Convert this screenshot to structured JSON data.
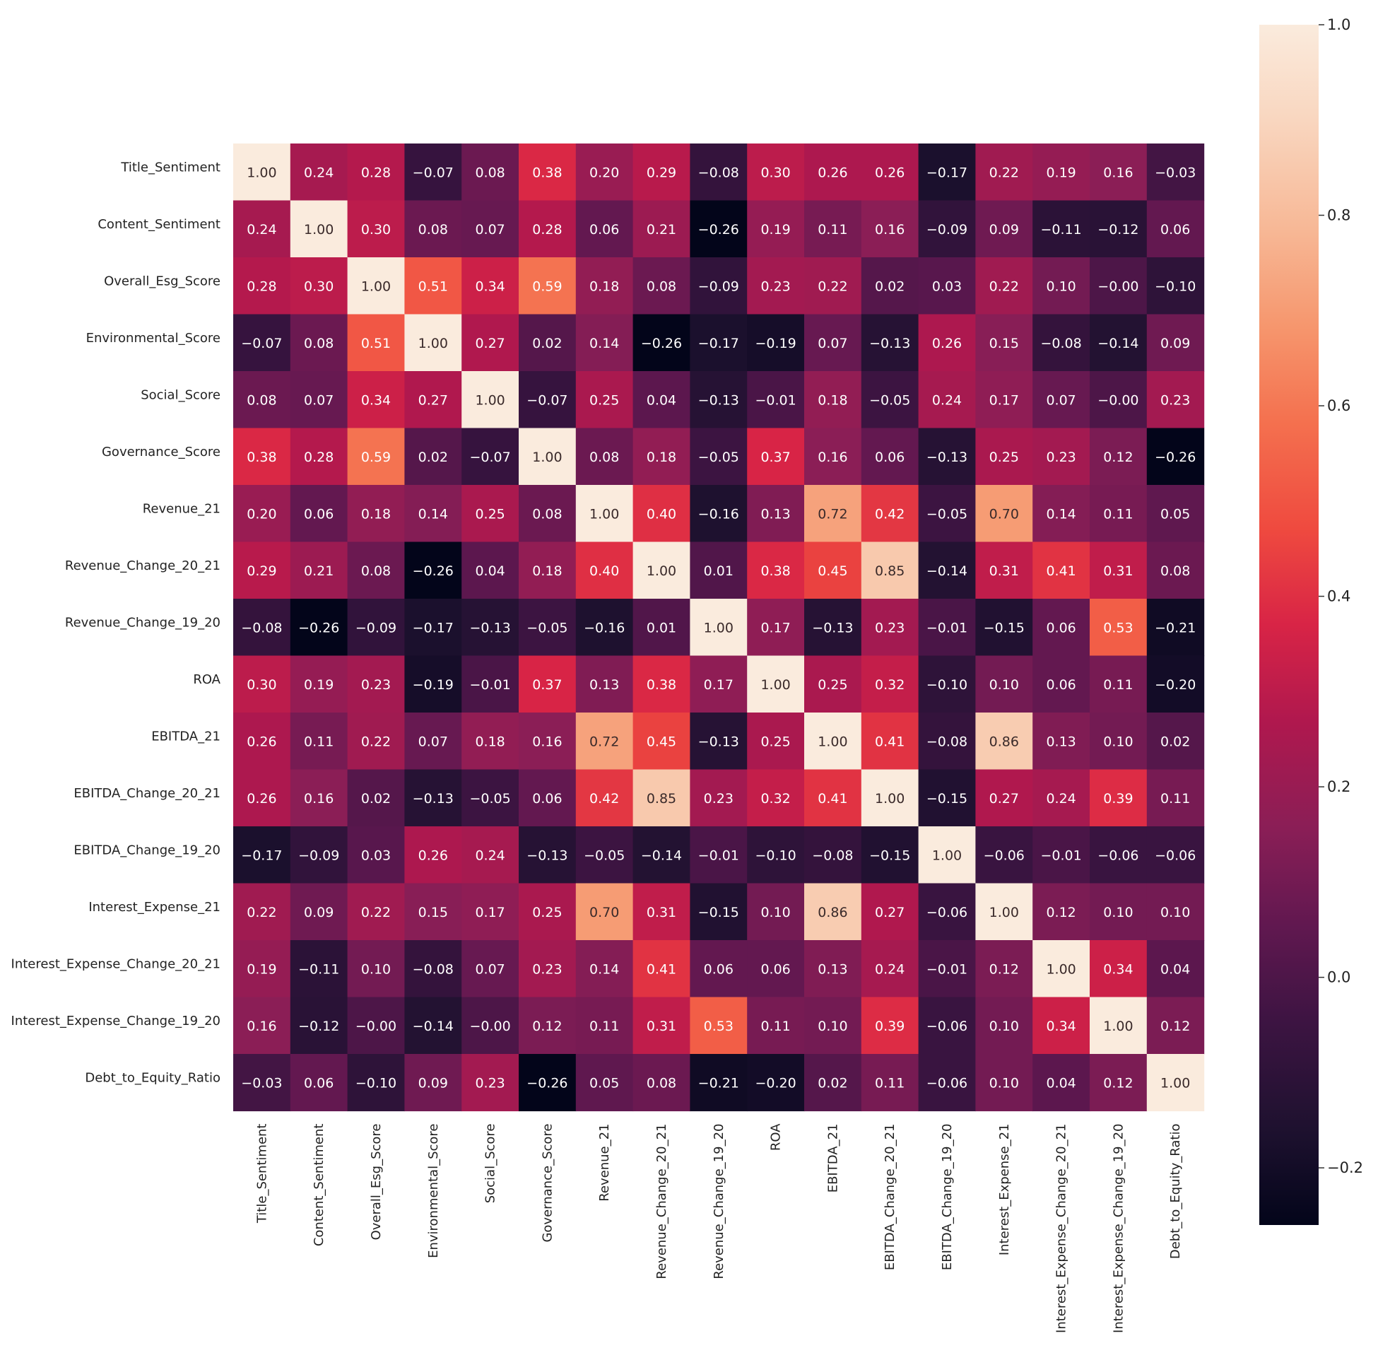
{
  "chart_data": {
    "type": "heatmap",
    "title": "",
    "xlabel": "",
    "ylabel": "",
    "labels": [
      "Title_Sentiment",
      "Content_Sentiment",
      "Overall_Esg_Score",
      "Environmental_Score",
      "Social_Score",
      "Governance_Score",
      "Revenue_21",
      "Revenue_Change_20_21",
      "Revenue_Change_19_20",
      "ROA",
      "EBITDA_21",
      "EBITDA_Change_20_21",
      "EBITDA_Change_19_20",
      "Interest_Expense_21",
      "Interest_Expense_Change_20_21",
      "Interest_Expense_Change_19_20",
      "Debt_to_Equity_Ratio"
    ],
    "values": [
      [
        1.0,
        0.24,
        0.28,
        -0.07,
        0.08,
        0.38,
        0.2,
        0.29,
        -0.08,
        0.3,
        0.26,
        0.26,
        -0.17,
        0.22,
        0.19,
        0.16,
        -0.03
      ],
      [
        0.24,
        1.0,
        0.3,
        0.08,
        0.07,
        0.28,
        0.06,
        0.21,
        -0.26,
        0.19,
        0.11,
        0.16,
        -0.09,
        0.09,
        -0.11,
        -0.12,
        0.06
      ],
      [
        0.28,
        0.3,
        1.0,
        0.51,
        0.34,
        0.59,
        0.18,
        0.08,
        -0.09,
        0.23,
        0.22,
        0.02,
        0.03,
        0.22,
        0.1,
        -0.0,
        -0.1
      ],
      [
        -0.07,
        0.08,
        0.51,
        1.0,
        0.27,
        0.02,
        0.14,
        -0.26,
        -0.17,
        -0.19,
        0.07,
        -0.13,
        0.26,
        0.15,
        -0.08,
        -0.14,
        0.09
      ],
      [
        0.08,
        0.07,
        0.34,
        0.27,
        1.0,
        -0.07,
        0.25,
        0.04,
        -0.13,
        -0.01,
        0.18,
        -0.05,
        0.24,
        0.17,
        0.07,
        -0.0,
        0.23
      ],
      [
        0.38,
        0.28,
        0.59,
        0.02,
        -0.07,
        1.0,
        0.08,
        0.18,
        -0.05,
        0.37,
        0.16,
        0.06,
        -0.13,
        0.25,
        0.23,
        0.12,
        -0.26
      ],
      [
        0.2,
        0.06,
        0.18,
        0.14,
        0.25,
        0.08,
        1.0,
        0.4,
        -0.16,
        0.13,
        0.72,
        0.42,
        -0.05,
        0.7,
        0.14,
        0.11,
        0.05
      ],
      [
        0.29,
        0.21,
        0.08,
        -0.26,
        0.04,
        0.18,
        0.4,
        1.0,
        0.01,
        0.38,
        0.45,
        0.85,
        -0.14,
        0.31,
        0.41,
        0.31,
        0.08
      ],
      [
        -0.08,
        -0.26,
        -0.09,
        -0.17,
        -0.13,
        -0.05,
        -0.16,
        0.01,
        1.0,
        0.17,
        -0.13,
        0.23,
        -0.01,
        -0.15,
        0.06,
        0.53,
        -0.21
      ],
      [
        0.3,
        0.19,
        0.23,
        -0.19,
        -0.01,
        0.37,
        0.13,
        0.38,
        0.17,
        1.0,
        0.25,
        0.32,
        -0.1,
        0.1,
        0.06,
        0.11,
        -0.2
      ],
      [
        0.26,
        0.11,
        0.22,
        0.07,
        0.18,
        0.16,
        0.72,
        0.45,
        -0.13,
        0.25,
        1.0,
        0.41,
        -0.08,
        0.86,
        0.13,
        0.1,
        0.02
      ],
      [
        0.26,
        0.16,
        0.02,
        -0.13,
        -0.05,
        0.06,
        0.42,
        0.85,
        0.23,
        0.32,
        0.41,
        1.0,
        -0.15,
        0.27,
        0.24,
        0.39,
        0.11
      ],
      [
        -0.17,
        -0.09,
        0.03,
        0.26,
        0.24,
        -0.13,
        -0.05,
        -0.14,
        -0.01,
        -0.1,
        -0.08,
        -0.15,
        1.0,
        -0.06,
        -0.01,
        -0.06,
        -0.06
      ],
      [
        0.22,
        0.09,
        0.22,
        0.15,
        0.17,
        0.25,
        0.7,
        0.31,
        -0.15,
        0.1,
        0.86,
        0.27,
        -0.06,
        1.0,
        0.12,
        0.1,
        0.1
      ],
      [
        0.19,
        -0.11,
        0.1,
        -0.08,
        0.07,
        0.23,
        0.14,
        0.41,
        0.06,
        0.06,
        0.13,
        0.24,
        -0.01,
        0.12,
        1.0,
        0.34,
        0.04
      ],
      [
        0.16,
        -0.12,
        -0.0,
        -0.14,
        -0.0,
        0.12,
        0.11,
        0.31,
        0.53,
        0.11,
        0.1,
        0.39,
        -0.06,
        0.1,
        0.34,
        1.0,
        0.12
      ],
      [
        -0.03,
        0.06,
        -0.1,
        0.09,
        0.23,
        -0.26,
        0.05,
        0.08,
        -0.21,
        -0.2,
        0.02,
        0.11,
        -0.06,
        0.1,
        0.04,
        0.12,
        1.0
      ]
    ],
    "cell_labels": [
      [
        "1.00",
        "0.24",
        "0.28",
        "−0.07",
        "0.08",
        "0.38",
        "0.20",
        "0.29",
        "−0.08",
        "0.30",
        "0.26",
        "0.26",
        "−0.17",
        "0.22",
        "0.19",
        "0.16",
        "−0.03"
      ],
      [
        "0.24",
        "1.00",
        "0.30",
        "0.08",
        "0.07",
        "0.28",
        "0.06",
        "0.21",
        "−0.26",
        "0.19",
        "0.11",
        "0.16",
        "−0.09",
        "0.09",
        "−0.11",
        "−0.12",
        "0.06"
      ],
      [
        "0.28",
        "0.30",
        "1.00",
        "0.51",
        "0.34",
        "0.59",
        "0.18",
        "0.08",
        "−0.09",
        "0.23",
        "0.22",
        "0.02",
        "0.03",
        "0.22",
        "0.10",
        "−0.00",
        "−0.10"
      ],
      [
        "−0.07",
        "0.08",
        "0.51",
        "1.00",
        "0.27",
        "0.02",
        "0.14",
        "−0.26",
        "−0.17",
        "−0.19",
        "0.07",
        "−0.13",
        "0.26",
        "0.15",
        "−0.08",
        "−0.14",
        "0.09"
      ],
      [
        "0.08",
        "0.07",
        "0.34",
        "0.27",
        "1.00",
        "−0.07",
        "0.25",
        "0.04",
        "−0.13",
        "−0.01",
        "0.18",
        "−0.05",
        "0.24",
        "0.17",
        "0.07",
        "−0.00",
        "0.23"
      ],
      [
        "0.38",
        "0.28",
        "0.59",
        "0.02",
        "−0.07",
        "1.00",
        "0.08",
        "0.18",
        "−0.05",
        "0.37",
        "0.16",
        "0.06",
        "−0.13",
        "0.25",
        "0.23",
        "0.12",
        "−0.26"
      ],
      [
        "0.20",
        "0.06",
        "0.18",
        "0.14",
        "0.25",
        "0.08",
        "1.00",
        "0.40",
        "−0.16",
        "0.13",
        "0.72",
        "0.42",
        "−0.05",
        "0.70",
        "0.14",
        "0.11",
        "0.05"
      ],
      [
        "0.29",
        "0.21",
        "0.08",
        "−0.26",
        "0.04",
        "0.18",
        "0.40",
        "1.00",
        "0.01",
        "0.38",
        "0.45",
        "0.85",
        "−0.14",
        "0.31",
        "0.41",
        "0.31",
        "0.08"
      ],
      [
        "−0.08",
        "−0.26",
        "−0.09",
        "−0.17",
        "−0.13",
        "−0.05",
        "−0.16",
        "0.01",
        "1.00",
        "0.17",
        "−0.13",
        "0.23",
        "−0.01",
        "−0.15",
        "0.06",
        "0.53",
        "−0.21"
      ],
      [
        "0.30",
        "0.19",
        "0.23",
        "−0.19",
        "−0.01",
        "0.37",
        "0.13",
        "0.38",
        "0.17",
        "1.00",
        "0.25",
        "0.32",
        "−0.10",
        "0.10",
        "0.06",
        "0.11",
        "−0.20"
      ],
      [
        "0.26",
        "0.11",
        "0.22",
        "0.07",
        "0.18",
        "0.16",
        "0.72",
        "0.45",
        "−0.13",
        "0.25",
        "1.00",
        "0.41",
        "−0.08",
        "0.86",
        "0.13",
        "0.10",
        "0.02"
      ],
      [
        "0.26",
        "0.16",
        "0.02",
        "−0.13",
        "−0.05",
        "0.06",
        "0.42",
        "0.85",
        "0.23",
        "0.32",
        "0.41",
        "1.00",
        "−0.15",
        "0.27",
        "0.24",
        "0.39",
        "0.11"
      ],
      [
        "−0.17",
        "−0.09",
        "0.03",
        "0.26",
        "0.24",
        "−0.13",
        "−0.05",
        "−0.14",
        "−0.01",
        "−0.10",
        "−0.08",
        "−0.15",
        "1.00",
        "−0.06",
        "−0.01",
        "−0.06",
        "−0.06"
      ],
      [
        "0.22",
        "0.09",
        "0.22",
        "0.15",
        "0.17",
        "0.25",
        "0.70",
        "0.31",
        "−0.15",
        "0.10",
        "0.86",
        "0.27",
        "−0.06",
        "1.00",
        "0.12",
        "0.10",
        "0.10"
      ],
      [
        "0.19",
        "−0.11",
        "0.10",
        "−0.08",
        "0.07",
        "0.23",
        "0.14",
        "0.41",
        "0.06",
        "0.06",
        "0.13",
        "0.24",
        "−0.01",
        "0.12",
        "1.00",
        "0.34",
        "0.04"
      ],
      [
        "0.16",
        "−0.12",
        "−0.00",
        "−0.14",
        "−0.00",
        "0.12",
        "0.11",
        "0.31",
        "0.53",
        "0.11",
        "0.10",
        "0.39",
        "−0.06",
        "0.10",
        "0.34",
        "1.00",
        "0.12"
      ],
      [
        "−0.03",
        "0.06",
        "−0.10",
        "0.09",
        "0.23",
        "−0.26",
        "0.05",
        "0.08",
        "−0.21",
        "−0.20",
        "0.02",
        "0.11",
        "−0.06",
        "0.10",
        "0.04",
        "0.12",
        "1.00"
      ]
    ],
    "colorscale": "rocket",
    "colorbar": {
      "range": [
        -0.26,
        1.0
      ],
      "ticks": [
        1.0,
        0.8,
        0.6,
        0.4,
        0.2,
        0.0,
        -0.2
      ],
      "tick_labels": [
        "1.0",
        "0.8",
        "0.6",
        "0.4",
        "0.2",
        "0.0",
        "−0.2"
      ],
      "position": "right"
    },
    "grid": false
  }
}
